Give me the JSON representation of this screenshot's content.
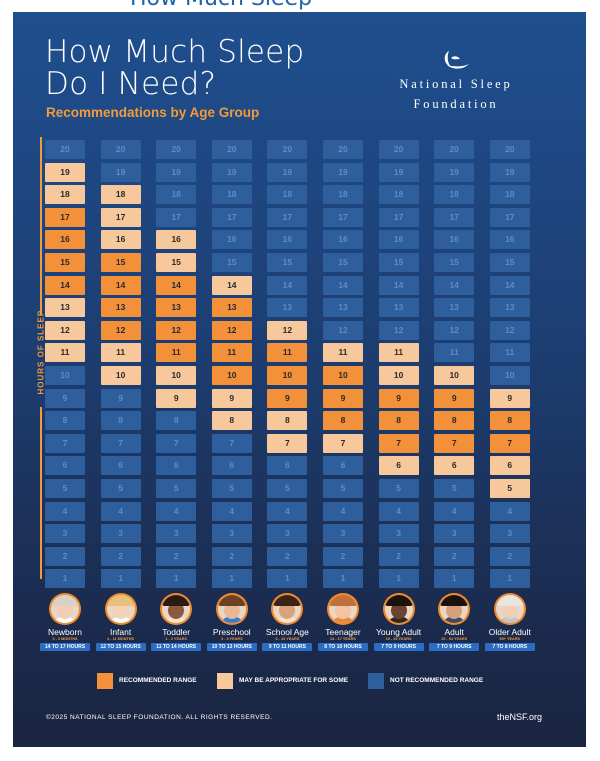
{
  "header_strip": {
    "text": "How Much Sleep"
  },
  "title": {
    "line1": "How Much Sleep",
    "line2": "Do I Need?"
  },
  "subtitle": "Recommendations by Age Group",
  "logo": {
    "line1": "National Sleep",
    "line2": "Foundation",
    "icon": "sleeping-moon-icon"
  },
  "y_axis_label": "HOURS OF SLEEP",
  "colors": {
    "recommended": "#f2913a",
    "may_be_appropriate": "#f6c89b",
    "not_recommended": "#2e5f9c",
    "accent": "#f29a3c"
  },
  "chart_data": {
    "type": "table",
    "hours": [
      20,
      19,
      18,
      17,
      16,
      15,
      14,
      13,
      12,
      11,
      10,
      9,
      8,
      7,
      6,
      5,
      4,
      3,
      2,
      1
    ],
    "series": [
      {
        "name": "Newborn",
        "range": "0 - 3 MONTHS",
        "hours_label": "14 TO 17 HOURS",
        "recommended": [
          14,
          17
        ],
        "may_be_appropriate": [
          [
            11,
            13
          ],
          [
            18,
            19
          ]
        ]
      },
      {
        "name": "Infant",
        "range": "4 - 11 MONTHS",
        "hours_label": "12 TO 15 HOURS",
        "recommended": [
          12,
          15
        ],
        "may_be_appropriate": [
          [
            10,
            11
          ],
          [
            16,
            18
          ]
        ]
      },
      {
        "name": "Toddler",
        "range": "1 - 2 YEARS",
        "hours_label": "11 TO 14 HOURS",
        "recommended": [
          11,
          14
        ],
        "may_be_appropriate": [
          [
            9,
            10
          ],
          [
            15,
            16
          ]
        ]
      },
      {
        "name": "Preschool",
        "range": "3 - 5 YEARS",
        "hours_label": "10 TO 13 HOURS",
        "recommended": [
          10,
          13
        ],
        "may_be_appropriate": [
          [
            8,
            9
          ],
          [
            14,
            14
          ]
        ]
      },
      {
        "name": "School Age",
        "range": "6 - 13 YEARS",
        "hours_label": "9 TO 11 HOURS",
        "recommended": [
          9,
          11
        ],
        "may_be_appropriate": [
          [
            7,
            8
          ],
          [
            12,
            12
          ]
        ]
      },
      {
        "name": "Teenager",
        "range": "14 - 17 YEARS",
        "hours_label": "8 TO 10 HOURS",
        "recommended": [
          8,
          10
        ],
        "may_be_appropriate": [
          [
            7,
            7
          ],
          [
            11,
            11
          ]
        ]
      },
      {
        "name": "Young Adult",
        "range": "18 - 25 YEARS",
        "hours_label": "7 TO 9 HOURS",
        "recommended": [
          7,
          9
        ],
        "may_be_appropriate": [
          [
            6,
            6
          ],
          [
            10,
            11
          ]
        ]
      },
      {
        "name": "Adult",
        "range": "26 - 64 YEARS",
        "hours_label": "7 TO 9 HOURS",
        "recommended": [
          7,
          9
        ],
        "may_be_appropriate": [
          [
            6,
            6
          ],
          [
            10,
            10
          ]
        ]
      },
      {
        "name": "Older Adult",
        "range": "65+ YEARS",
        "hours_label": "7 TO 8 HOURS",
        "recommended": [
          7,
          8
        ],
        "may_be_appropriate": [
          [
            5,
            6
          ],
          [
            9,
            9
          ]
        ]
      }
    ]
  },
  "legend": [
    {
      "label": "RECOMMENDED RANGE",
      "color": "#f2913a"
    },
    {
      "label": "MAY BE APPROPRIATE FOR SOME",
      "color": "#f6c89b"
    },
    {
      "label": "NOT RECOMMENDED RANGE",
      "color": "#2e5f9c"
    }
  ],
  "footer": {
    "copyright": "©2025 NATIONAL SLEEP FOUNDATION. ALL RIGHTS RESERVED.",
    "site": "theNSF.org"
  },
  "avatars": [
    {
      "hair": "#d9d0c8",
      "skin": "#f0cdb4",
      "shirt": "#ffffff"
    },
    {
      "hair": "#e6c27e",
      "skin": "#f3d2b8",
      "shirt": "#ffffff"
    },
    {
      "hair": "#2a1a12",
      "skin": "#8a5a3c",
      "shirt": "#f2e6d2"
    },
    {
      "hair": "#6b4226",
      "skin": "#e8b894",
      "shirt": "#2e7fd6"
    },
    {
      "hair": "#3a2416",
      "skin": "#d9a47c",
      "shirt": "#f2e6d2"
    },
    {
      "hair": "#c0703a",
      "skin": "#f0c4a4",
      "shirt": "#e88a3c"
    },
    {
      "hair": "#1c120c",
      "skin": "#6b4430",
      "shirt": "#2a2a2a"
    },
    {
      "hair": "#1c120c",
      "skin": "#d7a07c",
      "shirt": "#3a4a6a"
    },
    {
      "hair": "#e8e4e0",
      "skin": "#f0cdb4",
      "shirt": "#b8c6d8"
    }
  ]
}
